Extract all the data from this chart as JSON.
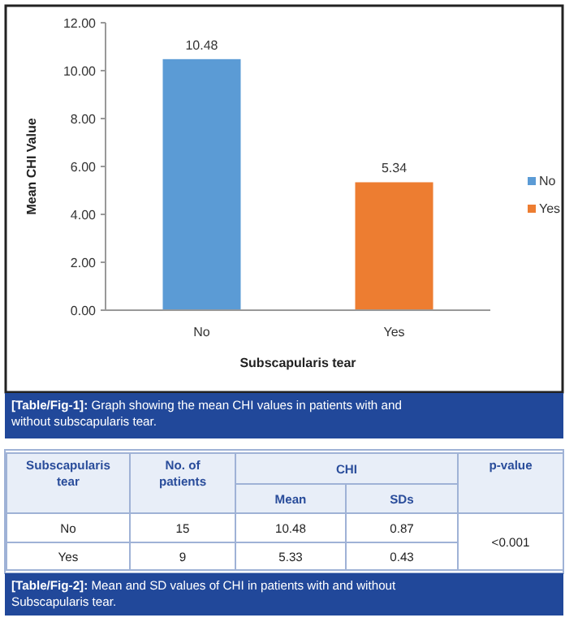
{
  "chart_data": [
    {
      "type": "bar",
      "categories": [
        "No",
        "Yes"
      ],
      "xlabel": "Subscapularis tear",
      "ylabel": "Mean CHI Value",
      "ylim": [
        0,
        12
      ],
      "yticks": [
        {
          "value": 0,
          "label": "0.00"
        },
        {
          "value": 2,
          "label": "2.00"
        },
        {
          "value": 4,
          "label": "4.00"
        },
        {
          "value": 6,
          "label": "6.00"
        },
        {
          "value": 8,
          "label": "8.00"
        },
        {
          "value": 10,
          "label": "10.00"
        },
        {
          "value": 12,
          "label": "12.00"
        }
      ],
      "series": [
        {
          "name": "No",
          "color": "#5b9bd5",
          "values": [
            10.48,
            null
          ]
        },
        {
          "name": "Yes",
          "color": "#ed7d31",
          "values": [
            null,
            5.34
          ]
        }
      ],
      "data_labels": true,
      "legend": "right",
      "grid": false,
      "annotations": [
        "[Table/Fig-1]: Graph showing the mean CHI values in patients with and without subscapularis tear."
      ]
    },
    {
      "type": "other",
      "annotations": [
        "Subscapularis tear",
        "No. of patients",
        "CHI",
        "p-value",
        "Mean",
        "SDs",
        "No",
        "15",
        "10.48",
        "0.87",
        "<0.001",
        "Yes",
        "9",
        "5.33",
        "0.43",
        "[Table/Fig-2]: Mean and SD values of CHI in patients with and without Subscapularis tear."
      ]
    }
  ]
}
